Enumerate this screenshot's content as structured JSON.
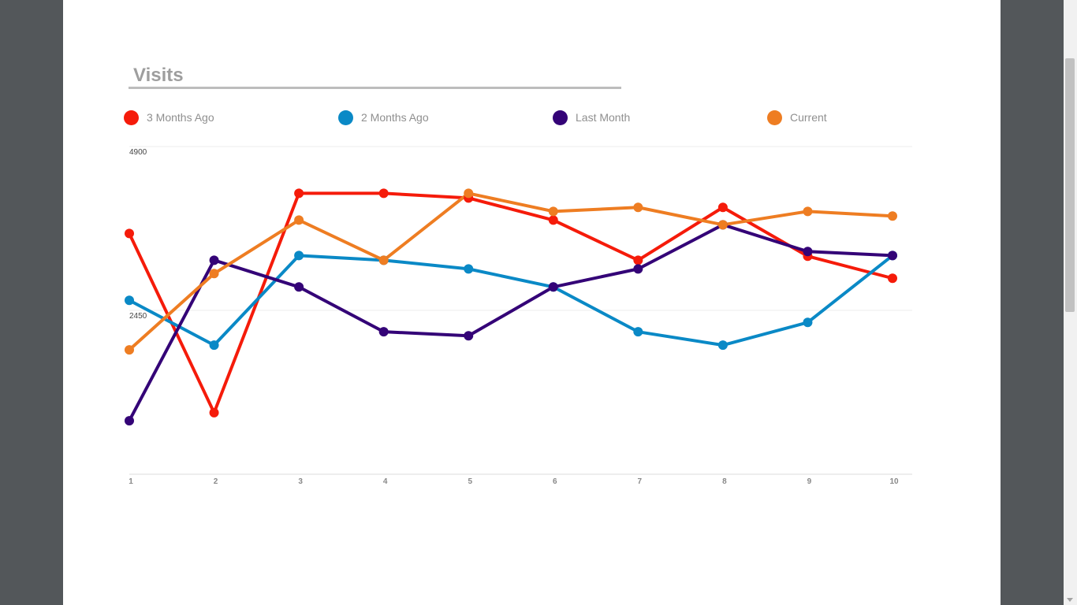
{
  "chart_data": {
    "type": "line",
    "title": "Visits",
    "categories": [
      "1",
      "2",
      "3",
      "4",
      "5",
      "6",
      "7",
      "8",
      "9",
      "10"
    ],
    "ylim": [
      0,
      4900
    ],
    "y_ticks": [
      "2450",
      "4900"
    ],
    "grid": true,
    "legend_position": "top",
    "series": [
      {
        "name": "3 Months Ago",
        "color": "#f51b0a",
        "values": [
          3600,
          920,
          4200,
          4200,
          4130,
          3800,
          3200,
          3990,
          3260,
          2930
        ]
      },
      {
        "name": "2 Months Ago",
        "color": "#0a89c6",
        "values": [
          2600,
          1930,
          3270,
          3200,
          3070,
          2800,
          2130,
          1930,
          2270,
          3270
        ]
      },
      {
        "name": "Last Month",
        "color": "#340377",
        "values": [
          800,
          3200,
          2800,
          2130,
          2070,
          2800,
          3070,
          3730,
          3330,
          3270
        ]
      },
      {
        "name": "Current",
        "color": "#ee7d22",
        "values": [
          1860,
          3000,
          3800,
          3200,
          4200,
          3930,
          3990,
          3730,
          3930,
          3860
        ]
      }
    ]
  }
}
